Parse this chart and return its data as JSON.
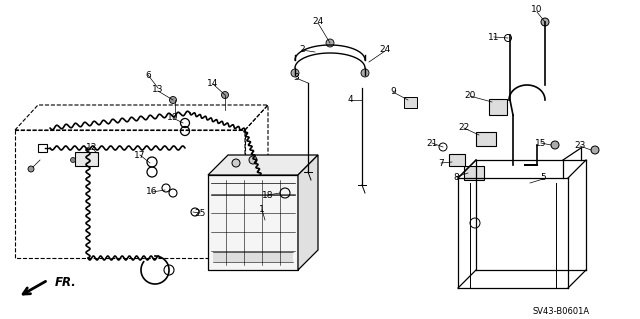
{
  "bg_color": "#ffffff",
  "diagram_id": "SV43-B0601A",
  "fr_label": "FR.",
  "line_color": "#000000",
  "label_fontsize": 6.5,
  "figsize": [
    6.4,
    3.19
  ],
  "dpi": 100
}
